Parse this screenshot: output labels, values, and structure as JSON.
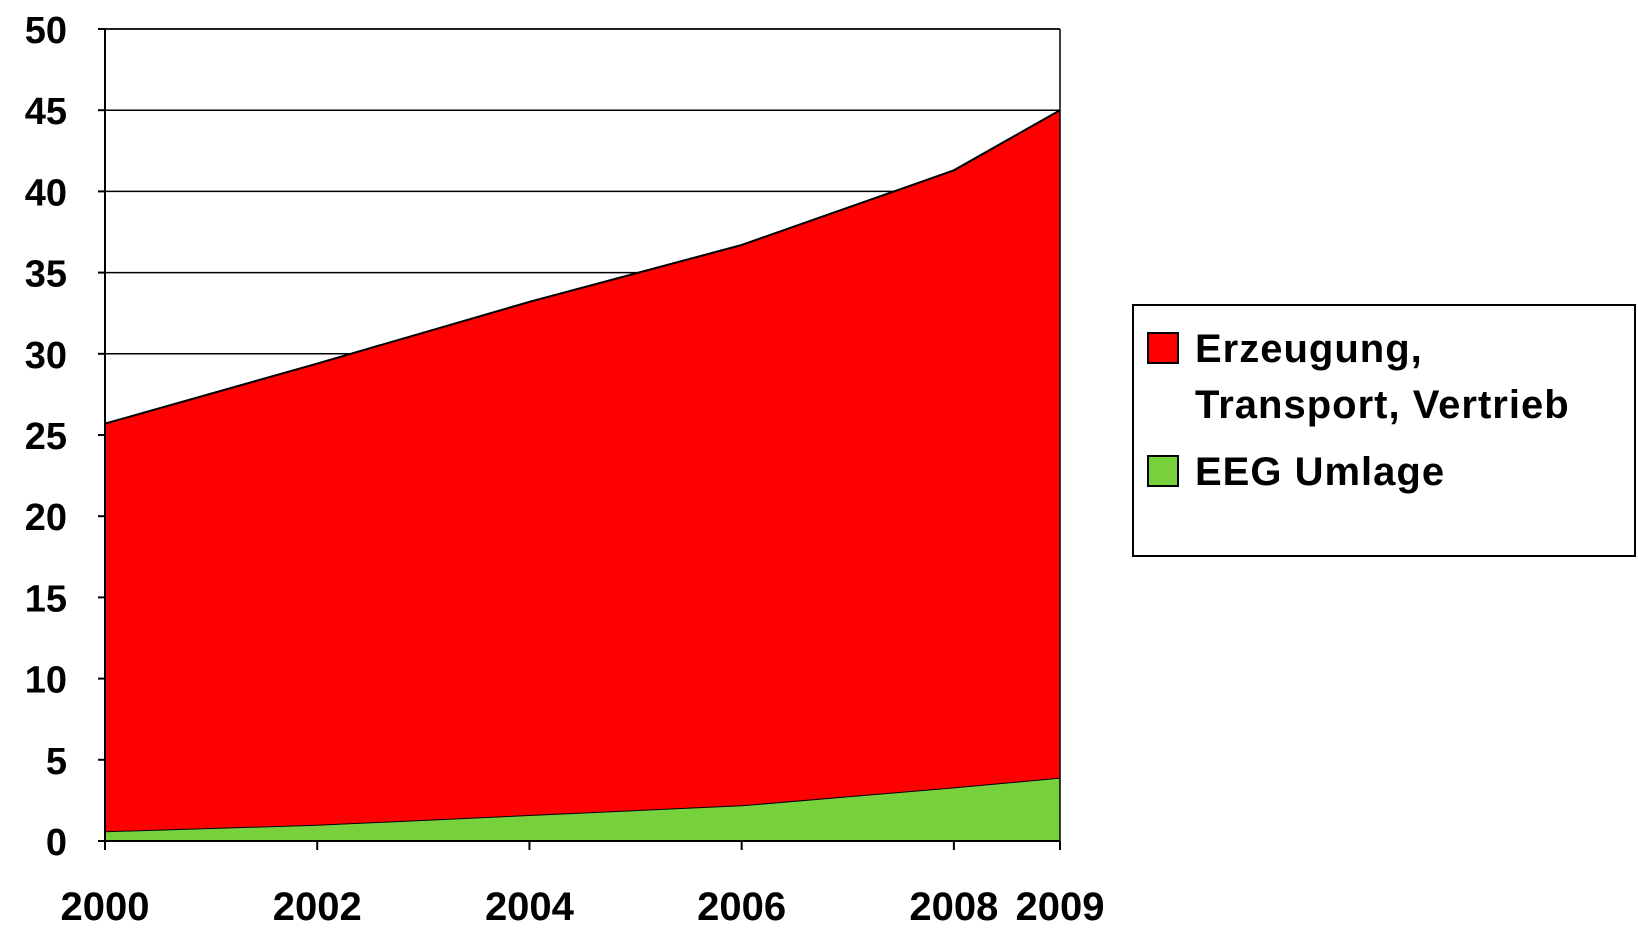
{
  "chart_data": {
    "type": "area",
    "stacked": true,
    "title": "",
    "xlabel": "",
    "ylabel": "",
    "x": [
      2000,
      2002,
      2004,
      2006,
      2008,
      2009
    ],
    "x_tick_labels": [
      "2000",
      "2002",
      "2004",
      "2006",
      "2008",
      "2009"
    ],
    "ylim": [
      0,
      50
    ],
    "y_ticks": [
      0,
      5,
      10,
      15,
      20,
      25,
      30,
      35,
      40,
      45,
      50
    ],
    "y_tick_labels": [
      "0",
      "5",
      "10",
      "15",
      "20",
      "25",
      "30",
      "35",
      "40",
      "45",
      "50"
    ],
    "grid": "horizontal",
    "legend_position": "right",
    "series": [
      {
        "name": "EEG Umlage",
        "color": "#77d13d",
        "values": [
          0.6,
          1.0,
          1.6,
          2.2,
          3.3,
          3.9
        ]
      },
      {
        "name": "Erzeugung, Transport, Vertrieb",
        "color": "#ff0000",
        "values": [
          25.1,
          28.4,
          31.6,
          34.5,
          38.0,
          41.1
        ]
      }
    ],
    "legend": [
      {
        "lines": [
          "Erzeugung,",
          "Transport, Vertrieb"
        ],
        "color": "#ff0000"
      },
      {
        "lines": [
          "EEG Umlage"
        ],
        "color": "#77d13d"
      }
    ]
  }
}
